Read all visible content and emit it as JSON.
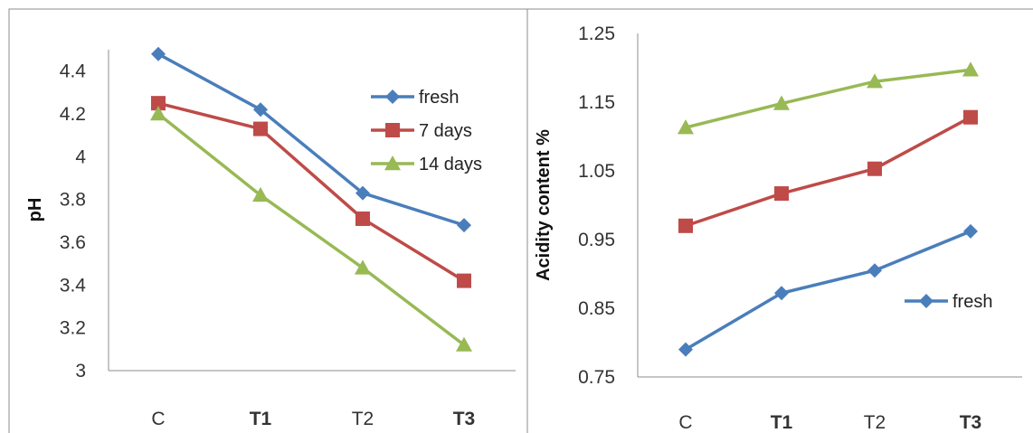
{
  "chart_data": [
    {
      "type": "line",
      "title": "",
      "xlabel": "",
      "ylabel": "pH",
      "categories": [
        "C",
        "T1",
        "T2",
        "T3"
      ],
      "bold_categories": [
        "T1",
        "T3"
      ],
      "ylim": [
        3,
        4.5
      ],
      "yticks": [
        3,
        3.2,
        3.4,
        3.6,
        3.8,
        4,
        4.2,
        4.4
      ],
      "ytick_labels": [
        "3",
        "3.2",
        "3.4",
        "3.6",
        "3.8",
        "4",
        "4.2",
        "4.4"
      ],
      "grid": false,
      "legend_position": "top-right",
      "series": [
        {
          "name": "fresh",
          "marker": "diamond",
          "color": "#4a7ebb",
          "values": [
            4.48,
            4.22,
            3.83,
            3.68
          ]
        },
        {
          "name": "7 days",
          "marker": "square",
          "color": "#be4b48",
          "values": [
            4.25,
            4.13,
            3.71,
            3.42
          ]
        },
        {
          "name": "14 days",
          "marker": "triangle",
          "color": "#98b954",
          "values": [
            4.2,
            3.82,
            3.48,
            3.12
          ]
        }
      ]
    },
    {
      "type": "line",
      "title": "",
      "xlabel": "",
      "ylabel": "Acidity content %",
      "categories": [
        "C",
        "T1",
        "T2",
        "T3"
      ],
      "bold_categories": [
        "T1",
        "T3"
      ],
      "ylim": [
        0.75,
        1.25
      ],
      "yticks": [
        0.75,
        0.85,
        0.95,
        1.05,
        1.15,
        1.25
      ],
      "ytick_labels": [
        "0.75",
        "0.85",
        "0.95",
        "1.05",
        "1.15",
        "1.25"
      ],
      "grid": false,
      "legend_position": "bottom-right",
      "series": [
        {
          "name": "fresh",
          "marker": "diamond",
          "color": "#4a7ebb",
          "values": [
            0.79,
            0.872,
            0.905,
            0.962
          ]
        },
        {
          "name": "",
          "marker": "square",
          "color": "#be4b48",
          "values": [
            0.97,
            1.017,
            1.053,
            1.128
          ]
        },
        {
          "name": "",
          "marker": "triangle",
          "color": "#98b954",
          "values": [
            1.113,
            1.148,
            1.18,
            1.197
          ]
        }
      ]
    }
  ]
}
